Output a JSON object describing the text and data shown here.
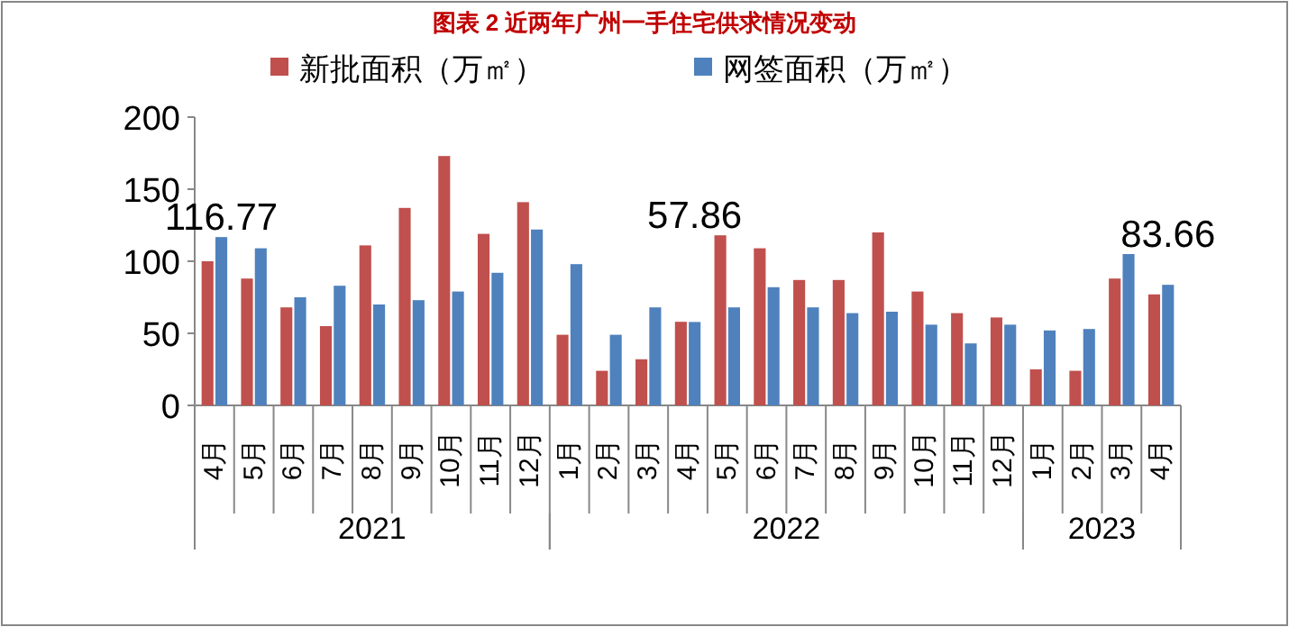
{
  "chart_data": {
    "type": "bar",
    "title": "图表 2  近两年广州一手住宅供求情况变动",
    "categories": [
      "4月",
      "5月",
      "6月",
      "7月",
      "8月",
      "9月",
      "10月",
      "11月",
      "12月",
      "1月",
      "2月",
      "3月",
      "4月",
      "5月",
      "6月",
      "7月",
      "8月",
      "9月",
      "10月",
      "11月",
      "12月",
      "1月",
      "2月",
      "3月",
      "4月"
    ],
    "series": [
      {
        "name": "新批面积（万㎡）",
        "color": "#c0504d",
        "values": [
          100,
          88,
          68,
          55,
          111,
          137,
          173,
          119,
          141,
          49,
          24,
          32,
          58,
          118,
          109,
          87,
          87,
          120,
          79,
          64,
          61,
          25,
          24,
          88,
          77
        ]
      },
      {
        "name": "网签面积（万㎡）",
        "color": "#4f81bd",
        "values": [
          116.77,
          109,
          75,
          83,
          70,
          73,
          79,
          92,
          122,
          98,
          49,
          68,
          57.86,
          68,
          82,
          68,
          64,
          65,
          56,
          43,
          56,
          52,
          53,
          105,
          83.66
        ],
        "value_labels": [
          "116.77",
          null,
          null,
          null,
          null,
          null,
          null,
          null,
          null,
          null,
          null,
          null,
          "57.86",
          null,
          null,
          null,
          null,
          null,
          null,
          null,
          null,
          null,
          null,
          null,
          "83.66"
        ]
      }
    ],
    "ylim": [
      0,
      200
    ],
    "yticks": [
      0,
      50,
      100,
      150,
      200
    ],
    "grid": false,
    "legend": "top",
    "annotations": [
      "2021",
      "2022",
      "2023"
    ]
  }
}
